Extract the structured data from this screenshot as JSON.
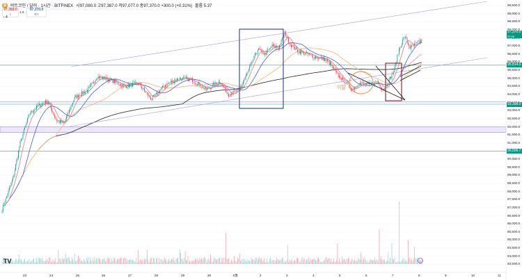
{
  "header": {
    "symbol_line": "비트코인 / 달러 · 1시간 · BITFINEX",
    "ohlc": "시97,080.0  고97,387.0  저97,077.0  종97,370.0  +300.0 (+0.31%)",
    "volume": "볼륨 5.37",
    "coin_glyph": "₿",
    "bid_box": {
      "price": "97,369.0",
      "sub": "0"
    },
    "spread": "1.0",
    "ask_box": {
      "price": "97,370.0",
      "sub": "매수"
    },
    "pane_collapse": "‹ 4"
  },
  "annotation_label": "이탈",
  "logo": "TV",
  "colors": {
    "up": "#089981",
    "down": "#f23645",
    "vol_up": "#9ed6cf",
    "vol_down": "#f5a6ad",
    "ma_blue": "#3d5afe",
    "ma_red": "#e57373",
    "ma_orange": "#f5b26b",
    "ma_black": "#222222",
    "channel": "#a79bea",
    "box_blue": "#2c3e91",
    "box_red": "#8b1a2c",
    "circle": "#ef8a3a",
    "hline_teal": "#22ab94",
    "band": "#9c8bd0"
  },
  "price_tags": {
    "last": "97,370.0",
    "last_sub": "07:06",
    "level1": "95,814.0",
    "level2": "93,398.0",
    "level3": "90,506.7"
  },
  "chart_data": {
    "type": "candlestick",
    "title": "",
    "xlabel": "",
    "ylabel": "",
    "ylim": [
      83000,
      99500
    ],
    "y_ticks": [
      99500,
      99000,
      98500,
      98000,
      97500,
      97000,
      96500,
      96000,
      95500,
      95000,
      94500,
      94000,
      93500,
      93000,
      92500,
      92000,
      91500,
      91000,
      90500,
      90000,
      89500,
      89000,
      88500,
      88000,
      87500,
      87000,
      86500,
      86000,
      85500,
      85000,
      84500,
      84000,
      83500
    ],
    "y_tick_labels": [
      "99,500.0",
      "99,000.0",
      "98,500.0",
      "98,000.0",
      "97,500.0",
      "97,000.0",
      "96,500.0",
      "96,000.0",
      "95,500.0",
      "95,000.0",
      "94,500.0",
      "94,000.0",
      "93,500.0",
      "93,000.0",
      "92,500.0",
      "92,000.0",
      "91,500.0",
      "91,000.0",
      "90,500.0",
      "90,000.0",
      "89,500.0",
      "89,000.0",
      "88,500.0",
      "88,000.0",
      "87,500.0",
      "87,000.0",
      "86,500.0",
      "86,000.0",
      "85,500.0",
      "85,000.0",
      "84,500.0",
      "84,000.0",
      "83,500.0"
    ],
    "x_tick_labels": [
      "23",
      "24",
      "25",
      "26",
      "27",
      "28",
      "29",
      "30",
      "5월",
      "2",
      "3",
      "4",
      "5",
      "6",
      "7",
      "8",
      "9",
      "10",
      "11"
    ],
    "horizontal_levels": [
      95814,
      93398,
      90506.7
    ],
    "range_band": [
      91650,
      92000
    ],
    "close_anchors": [
      [
        0,
        86900
      ],
      [
        12,
        88800
      ],
      [
        20,
        91000
      ],
      [
        30,
        92800
      ],
      [
        40,
        93300
      ],
      [
        50,
        93600
      ],
      [
        60,
        92400
      ],
      [
        68,
        92200
      ],
      [
        80,
        93800
      ],
      [
        95,
        94300
      ],
      [
        105,
        95100
      ],
      [
        120,
        94900
      ],
      [
        135,
        94500
      ],
      [
        150,
        94700
      ],
      [
        165,
        93700
      ],
      [
        180,
        94600
      ],
      [
        195,
        95000
      ],
      [
        210,
        94900
      ],
      [
        225,
        94300
      ],
      [
        240,
        94800
      ],
      [
        250,
        94000
      ],
      [
        262,
        94300
      ],
      [
        272,
        95500
      ],
      [
        282,
        96800
      ],
      [
        290,
        96500
      ],
      [
        298,
        97000
      ],
      [
        305,
        96900
      ],
      [
        312,
        97800
      ],
      [
        318,
        97100
      ],
      [
        326,
        96700
      ],
      [
        336,
        96500
      ],
      [
        346,
        96300
      ],
      [
        355,
        96200
      ],
      [
        362,
        95900
      ],
      [
        370,
        95200
      ],
      [
        378,
        94800
      ],
      [
        386,
        94300
      ],
      [
        394,
        94700
      ],
      [
        404,
        94600
      ],
      [
        414,
        94800
      ],
      [
        420,
        94300
      ],
      [
        426,
        94800
      ],
      [
        432,
        95400
      ],
      [
        438,
        96800
      ],
      [
        444,
        97600
      ],
      [
        450,
        96900
      ],
      [
        456,
        97100
      ],
      [
        463,
        97370
      ]
    ],
    "volume_spikes": [
      [
        70,
        0.15
      ],
      [
        150,
        0.2
      ],
      [
        247,
        0.45
      ],
      [
        262,
        0.15
      ],
      [
        370,
        0.3
      ],
      [
        438,
        0.9
      ],
      [
        448,
        0.35
      ],
      [
        455,
        0.25
      ],
      [
        416,
        0.5
      ],
      [
        430,
        0.3
      ]
    ],
    "moving_averages": [
      "ma_red",
      "ma_blue",
      "ma_orange",
      "ma_black"
    ],
    "n_candles": 464
  }
}
